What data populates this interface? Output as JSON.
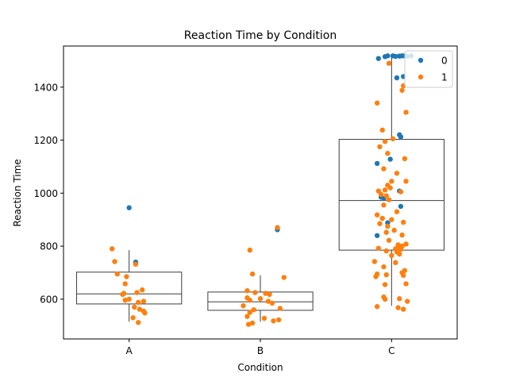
{
  "chart_data": {
    "type": "box",
    "title": "Reaction Time by Condition",
    "xlabel": "Condition",
    "ylabel": "Reaction Time",
    "categories": [
      "A",
      "B",
      "C"
    ],
    "ylim": [
      450,
      1555
    ],
    "yticks": [
      600,
      800,
      1000,
      1200,
      1400
    ],
    "grid": false,
    "legend": {
      "placement": "top-right",
      "entries": [
        "0",
        "1"
      ]
    },
    "colors": {
      "0": "#1f77b4",
      "1": "#ff7f0e",
      "box_edge": "#3d3d3d"
    },
    "boxes": [
      {
        "category": "A",
        "whisker_low": 515,
        "q1": 582,
        "median": 620,
        "q3": 702,
        "whisker_high": 785
      },
      {
        "category": "B",
        "whisker_low": 515,
        "q1": 558,
        "median": 590,
        "q3": 627,
        "whisker_high": 690
      },
      {
        "category": "C",
        "whisker_low": 575,
        "q1": 785,
        "median": 972,
        "q3": 1203,
        "whisker_high": 1520
      }
    ],
    "points": [
      {
        "cat": "A",
        "off": 0.0,
        "y": 945,
        "g": "0"
      },
      {
        "cat": "A",
        "off": 0.05,
        "y": 740,
        "g": "0"
      },
      {
        "cat": "A",
        "off": 0.05,
        "y": 735,
        "g": "0"
      },
      {
        "cat": "A",
        "off": -0.13,
        "y": 790,
        "g": "1"
      },
      {
        "cat": "A",
        "off": -0.11,
        "y": 742,
        "g": "1"
      },
      {
        "cat": "A",
        "off": 0.05,
        "y": 732,
        "g": "1"
      },
      {
        "cat": "A",
        "off": -0.09,
        "y": 695,
        "g": "1"
      },
      {
        "cat": "A",
        "off": -0.02,
        "y": 685,
        "g": "1"
      },
      {
        "cat": "A",
        "off": -0.03,
        "y": 658,
        "g": "1"
      },
      {
        "cat": "A",
        "off": 0.1,
        "y": 635,
        "g": "1"
      },
      {
        "cat": "A",
        "off": 0.06,
        "y": 625,
        "g": "1"
      },
      {
        "cat": "A",
        "off": -0.04,
        "y": 622,
        "g": "1"
      },
      {
        "cat": "A",
        "off": -0.05,
        "y": 618,
        "g": "1"
      },
      {
        "cat": "A",
        "off": 0.0,
        "y": 600,
        "g": "1"
      },
      {
        "cat": "A",
        "off": -0.03,
        "y": 596,
        "g": "1"
      },
      {
        "cat": "A",
        "off": 0.11,
        "y": 592,
        "g": "1"
      },
      {
        "cat": "A",
        "off": 0.07,
        "y": 588,
        "g": "1"
      },
      {
        "cat": "A",
        "off": 0.04,
        "y": 570,
        "g": "1"
      },
      {
        "cat": "A",
        "off": 0.08,
        "y": 562,
        "g": "1"
      },
      {
        "cat": "A",
        "off": 0.11,
        "y": 555,
        "g": "1"
      },
      {
        "cat": "A",
        "off": 0.12,
        "y": 548,
        "g": "1"
      },
      {
        "cat": "A",
        "off": 0.03,
        "y": 530,
        "g": "1"
      },
      {
        "cat": "A",
        "off": 0.07,
        "y": 512,
        "g": "1"
      },
      {
        "cat": "B",
        "off": 0.13,
        "y": 862,
        "g": "0"
      },
      {
        "cat": "B",
        "off": 0.13,
        "y": 870,
        "g": "1"
      },
      {
        "cat": "B",
        "off": -0.08,
        "y": 785,
        "g": "1"
      },
      {
        "cat": "B",
        "off": -0.06,
        "y": 695,
        "g": "1"
      },
      {
        "cat": "B",
        "off": 0.18,
        "y": 682,
        "g": "1"
      },
      {
        "cat": "B",
        "off": -0.1,
        "y": 632,
        "g": "1"
      },
      {
        "cat": "B",
        "off": -0.04,
        "y": 625,
        "g": "1"
      },
      {
        "cat": "B",
        "off": 0.04,
        "y": 622,
        "g": "1"
      },
      {
        "cat": "B",
        "off": 0.07,
        "y": 618,
        "g": "1"
      },
      {
        "cat": "B",
        "off": -0.1,
        "y": 605,
        "g": "1"
      },
      {
        "cat": "B",
        "off": 0.0,
        "y": 602,
        "g": "1"
      },
      {
        "cat": "B",
        "off": -0.08,
        "y": 596,
        "g": "1"
      },
      {
        "cat": "B",
        "off": 0.06,
        "y": 592,
        "g": "1"
      },
      {
        "cat": "B",
        "off": 0.09,
        "y": 585,
        "g": "1"
      },
      {
        "cat": "B",
        "off": -0.13,
        "y": 575,
        "g": "1"
      },
      {
        "cat": "B",
        "off": 0.15,
        "y": 565,
        "g": "1"
      },
      {
        "cat": "B",
        "off": -0.05,
        "y": 560,
        "g": "1"
      },
      {
        "cat": "B",
        "off": -0.08,
        "y": 550,
        "g": "1"
      },
      {
        "cat": "B",
        "off": -0.1,
        "y": 535,
        "g": "1"
      },
      {
        "cat": "B",
        "off": 0.03,
        "y": 528,
        "g": "1"
      },
      {
        "cat": "B",
        "off": 0.14,
        "y": 522,
        "g": "1"
      },
      {
        "cat": "B",
        "off": 0.1,
        "y": 518,
        "g": "1"
      },
      {
        "cat": "B",
        "off": -0.06,
        "y": 510,
        "g": "1"
      },
      {
        "cat": "B",
        "off": -0.09,
        "y": 505,
        "g": "1"
      },
      {
        "cat": "C",
        "off": -0.1,
        "y": 1508,
        "g": "0"
      },
      {
        "cat": "C",
        "off": -0.05,
        "y": 1515,
        "g": "0"
      },
      {
        "cat": "C",
        "off": -0.03,
        "y": 1518,
        "g": "0"
      },
      {
        "cat": "C",
        "off": 0.01,
        "y": 1518,
        "g": "0"
      },
      {
        "cat": "C",
        "off": 0.03,
        "y": 1516,
        "g": "0"
      },
      {
        "cat": "C",
        "off": 0.06,
        "y": 1517,
        "g": "0"
      },
      {
        "cat": "C",
        "off": 0.08,
        "y": 1518,
        "g": "0"
      },
      {
        "cat": "C",
        "off": 0.1,
        "y": 1518,
        "g": "0"
      },
      {
        "cat": "C",
        "off": 0.12,
        "y": 1516,
        "g": "0"
      },
      {
        "cat": "C",
        "off": 0.15,
        "y": 1518,
        "g": "0"
      },
      {
        "cat": "C",
        "off": 0.04,
        "y": 1435,
        "g": "0"
      },
      {
        "cat": "C",
        "off": 0.09,
        "y": 1440,
        "g": "0"
      },
      {
        "cat": "C",
        "off": 0.06,
        "y": 1220,
        "g": "0"
      },
      {
        "cat": "C",
        "off": 0.07,
        "y": 1212,
        "g": "0"
      },
      {
        "cat": "C",
        "off": -0.01,
        "y": 1128,
        "g": "0"
      },
      {
        "cat": "C",
        "off": -0.11,
        "y": 1112,
        "g": "0"
      },
      {
        "cat": "C",
        "off": -0.08,
        "y": 985,
        "g": "0"
      },
      {
        "cat": "C",
        "off": -0.06,
        "y": 980,
        "g": "0"
      },
      {
        "cat": "C",
        "off": 0.06,
        "y": 1008,
        "g": "0"
      },
      {
        "cat": "C",
        "off": 0.07,
        "y": 950,
        "g": "0"
      },
      {
        "cat": "C",
        "off": -0.03,
        "y": 888,
        "g": "0"
      },
      {
        "cat": "C",
        "off": -0.11,
        "y": 840,
        "g": "0"
      },
      {
        "cat": "C",
        "off": -0.02,
        "y": 1490,
        "g": "1"
      },
      {
        "cat": "C",
        "off": 0.09,
        "y": 1405,
        "g": "1"
      },
      {
        "cat": "C",
        "off": 0.08,
        "y": 1388,
        "g": "1"
      },
      {
        "cat": "C",
        "off": -0.11,
        "y": 1340,
        "g": "1"
      },
      {
        "cat": "C",
        "off": 0.11,
        "y": 1305,
        "g": "1"
      },
      {
        "cat": "C",
        "off": -0.07,
        "y": 1238,
        "g": "1"
      },
      {
        "cat": "C",
        "off": 0.01,
        "y": 1205,
        "g": "1"
      },
      {
        "cat": "C",
        "off": -0.05,
        "y": 1195,
        "g": "1"
      },
      {
        "cat": "C",
        "off": -0.09,
        "y": 1175,
        "g": "1"
      },
      {
        "cat": "C",
        "off": -0.03,
        "y": 1150,
        "g": "1"
      },
      {
        "cat": "C",
        "off": 0.1,
        "y": 1130,
        "g": "1"
      },
      {
        "cat": "C",
        "off": -0.06,
        "y": 1092,
        "g": "1"
      },
      {
        "cat": "C",
        "off": 0.04,
        "y": 1075,
        "g": "1"
      },
      {
        "cat": "C",
        "off": 0.0,
        "y": 1045,
        "g": "1"
      },
      {
        "cat": "C",
        "off": 0.11,
        "y": 1045,
        "g": "1"
      },
      {
        "cat": "C",
        "off": -0.03,
        "y": 1030,
        "g": "1"
      },
      {
        "cat": "C",
        "off": -0.01,
        "y": 1020,
        "g": "1"
      },
      {
        "cat": "C",
        "off": -0.05,
        "y": 1012,
        "g": "1"
      },
      {
        "cat": "C",
        "off": -0.1,
        "y": 1008,
        "g": "1"
      },
      {
        "cat": "C",
        "off": 0.07,
        "y": 1005,
        "g": "1"
      },
      {
        "cat": "C",
        "off": -0.08,
        "y": 995,
        "g": "1"
      },
      {
        "cat": "C",
        "off": -0.04,
        "y": 990,
        "g": "1"
      },
      {
        "cat": "C",
        "off": -0.02,
        "y": 975,
        "g": "1"
      },
      {
        "cat": "C",
        "off": -0.06,
        "y": 955,
        "g": "1"
      },
      {
        "cat": "C",
        "off": 0.04,
        "y": 930,
        "g": "1"
      },
      {
        "cat": "C",
        "off": -0.11,
        "y": 918,
        "g": "1"
      },
      {
        "cat": "C",
        "off": -0.07,
        "y": 905,
        "g": "1"
      },
      {
        "cat": "C",
        "off": 0.0,
        "y": 900,
        "g": "1"
      },
      {
        "cat": "C",
        "off": 0.09,
        "y": 890,
        "g": "1"
      },
      {
        "cat": "C",
        "off": -0.09,
        "y": 885,
        "g": "1"
      },
      {
        "cat": "C",
        "off": -0.03,
        "y": 875,
        "g": "1"
      },
      {
        "cat": "C",
        "off": 0.02,
        "y": 860,
        "g": "1"
      },
      {
        "cat": "C",
        "off": -0.04,
        "y": 852,
        "g": "1"
      },
      {
        "cat": "C",
        "off": 0.08,
        "y": 842,
        "g": "1"
      },
      {
        "cat": "C",
        "off": -0.02,
        "y": 822,
        "g": "1"
      },
      {
        "cat": "C",
        "off": 0.11,
        "y": 808,
        "g": "1"
      },
      {
        "cat": "C",
        "off": 0.05,
        "y": 805,
        "g": "1"
      },
      {
        "cat": "C",
        "off": 0.08,
        "y": 800,
        "g": "1"
      },
      {
        "cat": "C",
        "off": 0.06,
        "y": 795,
        "g": "1"
      },
      {
        "cat": "C",
        "off": -0.1,
        "y": 792,
        "g": "1"
      },
      {
        "cat": "C",
        "off": 0.03,
        "y": 790,
        "g": "1"
      },
      {
        "cat": "C",
        "off": 0.07,
        "y": 788,
        "g": "1"
      },
      {
        "cat": "C",
        "off": -0.04,
        "y": 782,
        "g": "1"
      },
      {
        "cat": "C",
        "off": 0.04,
        "y": 778,
        "g": "1"
      },
      {
        "cat": "C",
        "off": 0.06,
        "y": 770,
        "g": "1"
      },
      {
        "cat": "C",
        "off": 0.0,
        "y": 765,
        "g": "1"
      },
      {
        "cat": "C",
        "off": -0.13,
        "y": 742,
        "g": "1"
      },
      {
        "cat": "C",
        "off": 0.03,
        "y": 738,
        "g": "1"
      },
      {
        "cat": "C",
        "off": -0.06,
        "y": 722,
        "g": "1"
      },
      {
        "cat": "C",
        "off": 0.1,
        "y": 708,
        "g": "1"
      },
      {
        "cat": "C",
        "off": 0.08,
        "y": 700,
        "g": "1"
      },
      {
        "cat": "C",
        "off": -0.11,
        "y": 695,
        "g": "1"
      },
      {
        "cat": "C",
        "off": -0.04,
        "y": 692,
        "g": "1"
      },
      {
        "cat": "C",
        "off": -0.12,
        "y": 685,
        "g": "1"
      },
      {
        "cat": "C",
        "off": 0.09,
        "y": 690,
        "g": "1"
      },
      {
        "cat": "C",
        "off": -0.05,
        "y": 655,
        "g": "1"
      },
      {
        "cat": "C",
        "off": 0.11,
        "y": 658,
        "g": "1"
      },
      {
        "cat": "C",
        "off": -0.06,
        "y": 608,
        "g": "1"
      },
      {
        "cat": "C",
        "off": -0.05,
        "y": 600,
        "g": "1"
      },
      {
        "cat": "C",
        "off": 0.06,
        "y": 602,
        "g": "1"
      },
      {
        "cat": "C",
        "off": 0.12,
        "y": 592,
        "g": "1"
      },
      {
        "cat": "C",
        "off": -0.11,
        "y": 572,
        "g": "1"
      },
      {
        "cat": "C",
        "off": 0.05,
        "y": 568,
        "g": "1"
      },
      {
        "cat": "C",
        "off": 0.09,
        "y": 562,
        "g": "1"
      }
    ]
  }
}
